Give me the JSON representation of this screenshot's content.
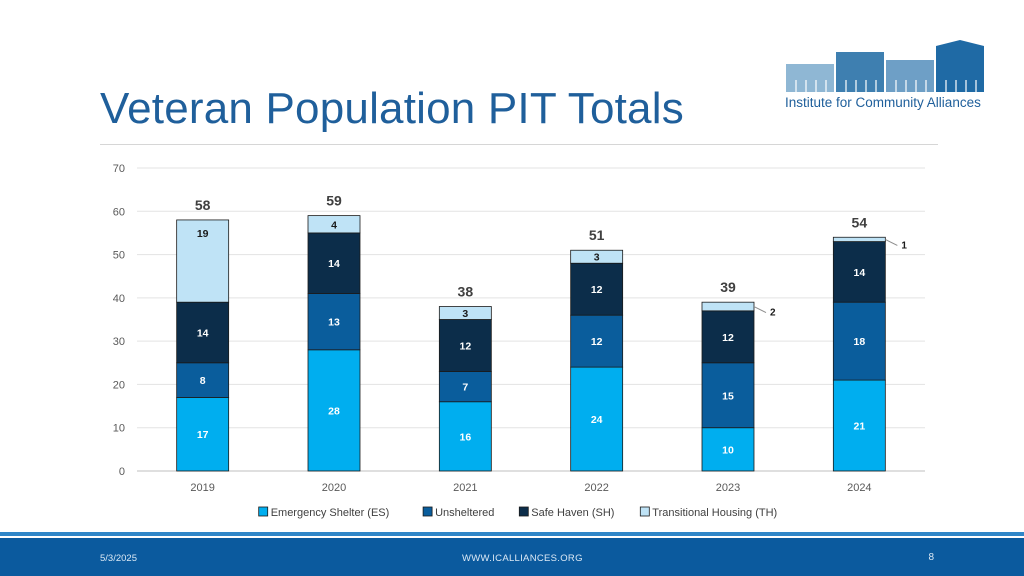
{
  "slide": {
    "title": "Veteran Population PIT Totals",
    "logo_text": "Institute for Community Alliances"
  },
  "footer": {
    "date": "5/3/2025",
    "url": "WWW.ICALLIANCES.ORG",
    "page_number": "8"
  },
  "colors": {
    "Emergency Shelter (ES)": "#00aeef",
    "Unsheltered": "#0a5d9c",
    "Safe Haven (SH)": "#0c2d4a",
    "Transitional Housing (TH)": "#bfe3f6",
    "title": "#1f5f9b",
    "footer": "#0b5a9e"
  },
  "chart_data": {
    "type": "bar",
    "stacked": true,
    "title": "",
    "xlabel": "",
    "ylabel": "",
    "ylim": [
      0,
      70
    ],
    "yticks": [
      0,
      10,
      20,
      30,
      40,
      50,
      60,
      70
    ],
    "grid": true,
    "legend": "bottom",
    "categories": [
      "2019",
      "2020",
      "2021",
      "2022",
      "2023",
      "2024"
    ],
    "totals": [
      58,
      59,
      38,
      51,
      39,
      54
    ],
    "series": [
      {
        "name": "Emergency Shelter (ES)",
        "values": [
          17,
          28,
          16,
          24,
          10,
          21
        ]
      },
      {
        "name": "Unsheltered",
        "values": [
          8,
          13,
          7,
          12,
          15,
          18
        ]
      },
      {
        "name": "Safe Haven (SH)",
        "values": [
          14,
          14,
          12,
          12,
          12,
          14
        ]
      },
      {
        "name": "Transitional Housing (TH)",
        "values": [
          19,
          4,
          3,
          3,
          2,
          1
        ]
      }
    ]
  }
}
